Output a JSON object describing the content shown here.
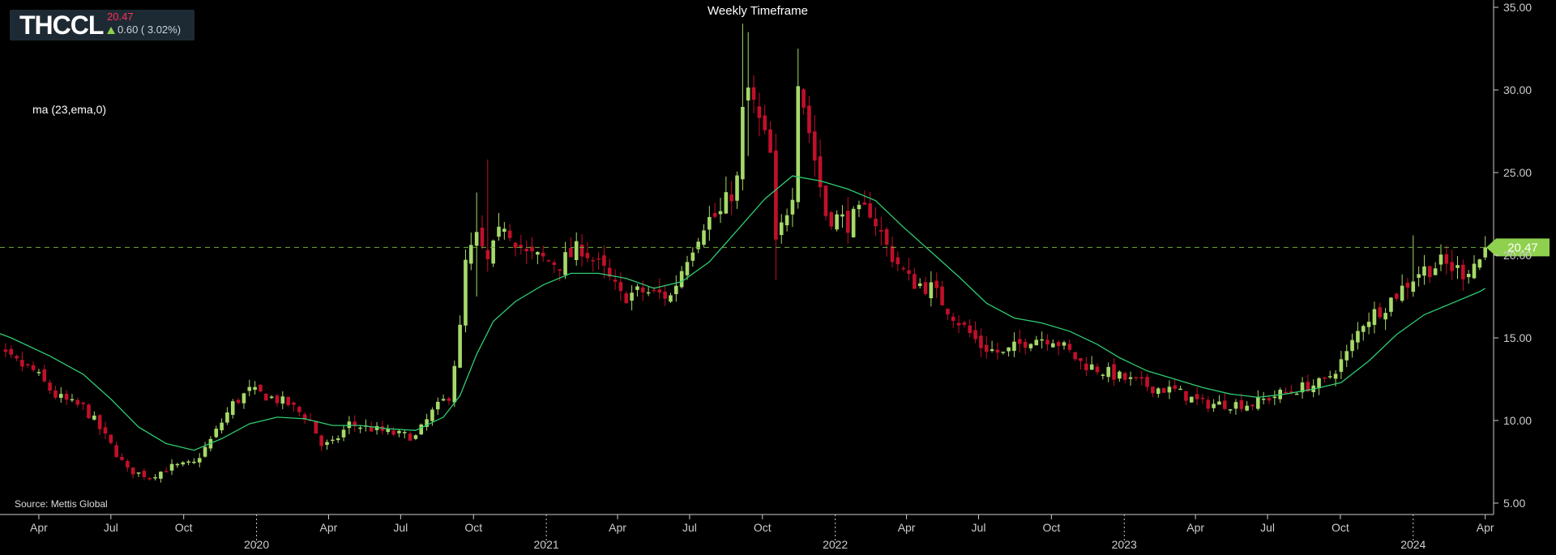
{
  "header": {
    "symbol": "THCCL",
    "price": "20.47",
    "change": "0.60 ( 3.02%)",
    "arrow_icon": "up-arrow-icon"
  },
  "title": "Weekly Timeframe",
  "indicator_label": "ma (23,ema,0)",
  "source": "Source: Mettis Global",
  "colors": {
    "up": "#a6d96a",
    "down": "#c0102a",
    "ma": "#2ecc71",
    "background": "#000000",
    "price_tag": "#8fd14f"
  },
  "chart_data": {
    "type": "candlestick",
    "y_ticks": [
      5,
      10,
      15,
      20,
      25,
      30,
      35
    ],
    "y_tick_labels": [
      "5.00",
      "10.00",
      "15.00",
      "20.00",
      "25.00",
      "30.00",
      "35.00"
    ],
    "ylim": [
      4.9,
      35.1
    ],
    "x_start": "2019-01-01",
    "x_end": "2024-05-01",
    "month_ticks": [
      {
        "date": "2019-04-01",
        "label": "Apr"
      },
      {
        "date": "2019-07-01",
        "label": "Jul"
      },
      {
        "date": "2019-10-01",
        "label": "Oct"
      },
      {
        "date": "2020-04-01",
        "label": "Apr"
      },
      {
        "date": "2020-07-01",
        "label": "Jul"
      },
      {
        "date": "2020-10-01",
        "label": "Oct"
      },
      {
        "date": "2021-04-01",
        "label": "Apr"
      },
      {
        "date": "2021-07-01",
        "label": "Jul"
      },
      {
        "date": "2021-10-01",
        "label": "Oct"
      },
      {
        "date": "2022-04-01",
        "label": "Apr"
      },
      {
        "date": "2022-07-01",
        "label": "Jul"
      },
      {
        "date": "2022-10-01",
        "label": "Oct"
      },
      {
        "date": "2023-04-01",
        "label": "Apr"
      },
      {
        "date": "2023-07-01",
        "label": "Jul"
      },
      {
        "date": "2023-10-01",
        "label": "Oct"
      },
      {
        "date": "2024-04-01",
        "label": "Apr"
      }
    ],
    "year_ticks": [
      {
        "date": "2020-01-01",
        "label": "2020"
      },
      {
        "date": "2021-01-01",
        "label": "2021"
      },
      {
        "date": "2022-01-01",
        "label": "2022"
      },
      {
        "date": "2023-01-01",
        "label": "2023"
      },
      {
        "date": "2024-01-01",
        "label": "2024"
      }
    ],
    "last_price": 20.47,
    "last_price_label": "20.47",
    "price_path": [
      [
        "2019-01-07",
        14.2
      ],
      [
        "2019-02-18",
        13.8
      ],
      [
        "2019-03-25",
        13.0
      ],
      [
        "2019-04-22",
        11.5
      ],
      [
        "2019-05-13",
        11.0
      ],
      [
        "2019-05-27",
        10.8
      ],
      [
        "2019-06-10",
        10.0
      ],
      [
        "2019-07-01",
        8.5
      ],
      [
        "2019-07-22",
        7.0
      ],
      [
        "2019-08-19",
        6.6
      ],
      [
        "2019-09-16",
        7.2
      ],
      [
        "2019-10-14",
        7.4
      ],
      [
        "2019-11-04",
        8.8
      ],
      [
        "2019-12-02",
        11.0
      ],
      [
        "2019-12-23",
        11.8
      ],
      [
        "2020-01-13",
        11.5
      ],
      [
        "2020-02-10",
        11.0
      ],
      [
        "2020-03-09",
        10.0
      ],
      [
        "2020-03-23",
        8.5
      ],
      [
        "2020-04-06",
        8.6
      ],
      [
        "2020-04-27",
        9.8
      ],
      [
        "2020-05-25",
        9.5
      ],
      [
        "2020-06-22",
        9.2
      ],
      [
        "2020-07-20",
        9.0
      ],
      [
        "2020-08-10",
        10.5
      ],
      [
        "2020-08-31",
        11.5
      ],
      [
        "2020-09-14",
        15.5
      ],
      [
        "2020-09-21",
        19.5
      ],
      [
        "2020-10-05",
        21.0
      ],
      [
        "2020-10-19",
        19.5
      ],
      [
        "2020-11-09",
        22.0
      ],
      [
        "2020-12-07",
        20.0
      ],
      [
        "2021-01-18",
        19.5
      ],
      [
        "2021-02-15",
        20.5
      ],
      [
        "2021-03-15",
        19.0
      ],
      [
        "2021-04-05",
        17.5
      ],
      [
        "2021-05-03",
        17.8
      ],
      [
        "2021-06-07",
        17.5
      ],
      [
        "2021-06-28",
        20.0
      ],
      [
        "2021-07-19",
        22.0
      ],
      [
        "2021-08-09",
        22.5
      ],
      [
        "2021-08-30",
        24.5
      ],
      [
        "2021-09-06",
        28.5
      ],
      [
        "2021-09-13",
        30.0
      ],
      [
        "2021-09-27",
        28.0
      ],
      [
        "2021-10-11",
        26.0
      ],
      [
        "2021-10-18",
        20.5
      ],
      [
        "2021-11-08",
        24.0
      ],
      [
        "2021-11-15",
        31.0
      ],
      [
        "2021-11-29",
        27.5
      ],
      [
        "2021-12-20",
        22.5
      ],
      [
        "2022-01-17",
        22.0
      ],
      [
        "2022-02-14",
        22.8
      ],
      [
        "2022-03-07",
        20.5
      ],
      [
        "2022-04-04",
        18.5
      ],
      [
        "2022-05-02",
        18.0
      ],
      [
        "2022-06-06",
        16.0
      ],
      [
        "2022-07-04",
        14.5
      ],
      [
        "2022-08-01",
        14.0
      ],
      [
        "2022-09-05",
        15.0
      ],
      [
        "2022-10-03",
        15.0
      ],
      [
        "2022-11-07",
        13.5
      ],
      [
        "2022-12-05",
        13.0
      ],
      [
        "2023-01-02",
        12.5
      ],
      [
        "2023-02-06",
        12.0
      ],
      [
        "2023-03-06",
        11.8
      ],
      [
        "2023-04-10",
        11.0
      ],
      [
        "2023-05-08",
        11.0
      ],
      [
        "2023-06-12",
        11.0
      ],
      [
        "2023-07-10",
        11.5
      ],
      [
        "2023-08-14",
        12.0
      ],
      [
        "2023-09-11",
        12.3
      ],
      [
        "2023-10-09",
        14.0
      ],
      [
        "2023-10-30",
        16.0
      ],
      [
        "2023-11-27",
        17.0
      ],
      [
        "2023-12-18",
        18.0
      ],
      [
        "2024-01-08",
        19.0
      ],
      [
        "2024-02-05",
        19.5
      ],
      [
        "2024-03-04",
        19.0
      ],
      [
        "2024-03-25",
        19.8
      ],
      [
        "2024-04-01",
        20.47
      ]
    ],
    "ma_path": [
      [
        "2019-01-01",
        16.0
      ],
      [
        "2019-02-25",
        15.0
      ],
      [
        "2019-04-15",
        13.9
      ],
      [
        "2019-05-27",
        12.8
      ],
      [
        "2019-07-01",
        11.3
      ],
      [
        "2019-08-05",
        9.6
      ],
      [
        "2019-09-09",
        8.6
      ],
      [
        "2019-10-14",
        8.2
      ],
      [
        "2019-11-18",
        8.9
      ],
      [
        "2019-12-23",
        9.8
      ],
      [
        "2020-01-27",
        10.2
      ],
      [
        "2020-03-02",
        10.1
      ],
      [
        "2020-04-06",
        9.7
      ],
      [
        "2020-05-11",
        9.7
      ],
      [
        "2020-06-15",
        9.5
      ],
      [
        "2020-07-20",
        9.4
      ],
      [
        "2020-08-24",
        10.2
      ],
      [
        "2020-09-14",
        11.5
      ],
      [
        "2020-10-05",
        14.0
      ],
      [
        "2020-10-26",
        16.0
      ],
      [
        "2020-11-23",
        17.2
      ],
      [
        "2020-12-28",
        18.2
      ],
      [
        "2021-02-01",
        18.9
      ],
      [
        "2021-03-08",
        18.9
      ],
      [
        "2021-04-12",
        18.6
      ],
      [
        "2021-05-17",
        18.0
      ],
      [
        "2021-06-21",
        18.4
      ],
      [
        "2021-07-26",
        19.6
      ],
      [
        "2021-08-30",
        21.5
      ],
      [
        "2021-10-04",
        23.4
      ],
      [
        "2021-11-08",
        24.8
      ],
      [
        "2021-12-13",
        24.5
      ],
      [
        "2022-01-17",
        24.0
      ],
      [
        "2022-02-21",
        23.3
      ],
      [
        "2022-03-28",
        21.7
      ],
      [
        "2022-05-02",
        20.2
      ],
      [
        "2022-06-06",
        18.7
      ],
      [
        "2022-07-11",
        17.1
      ],
      [
        "2022-08-15",
        16.2
      ],
      [
        "2022-09-19",
        15.9
      ],
      [
        "2022-10-24",
        15.4
      ],
      [
        "2022-11-28",
        14.6
      ],
      [
        "2022-12-26",
        13.8
      ],
      [
        "2023-01-30",
        13.0
      ],
      [
        "2023-03-06",
        12.5
      ],
      [
        "2023-04-10",
        12.0
      ],
      [
        "2023-05-15",
        11.6
      ],
      [
        "2023-06-19",
        11.4
      ],
      [
        "2023-07-24",
        11.6
      ],
      [
        "2023-08-28",
        11.9
      ],
      [
        "2023-10-02",
        12.3
      ],
      [
        "2023-11-06",
        13.6
      ],
      [
        "2023-12-11",
        15.2
      ],
      [
        "2024-01-15",
        16.4
      ],
      [
        "2024-02-19",
        17.1
      ],
      [
        "2024-03-25",
        17.8
      ],
      [
        "2024-04-01",
        18.0
      ]
    ],
    "wick_events": [
      [
        "2020-09-21",
        19.5,
        15.5
      ],
      [
        "2020-10-05",
        23.8,
        17.5
      ],
      [
        "2020-10-19",
        25.8,
        20.5
      ],
      [
        "2021-09-06",
        34.0,
        27.0
      ],
      [
        "2021-09-13",
        33.5,
        26.0
      ],
      [
        "2021-10-18",
        24.5,
        18.5
      ],
      [
        "2021-11-15",
        32.5,
        28.0
      ],
      [
        "2024-01-01",
        21.2,
        18.5
      ]
    ]
  }
}
